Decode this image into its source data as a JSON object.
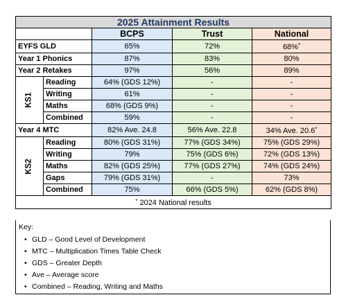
{
  "title": "2025 Attainment Results",
  "columns": [
    "BCPS",
    "Trust",
    "National"
  ],
  "rows": {
    "eyfs": {
      "label": "EYFS GLD",
      "bcps": "65%",
      "trust": "72%",
      "national": "68%"
    },
    "phonics": {
      "label": "Year 1 Phonics",
      "bcps": "87%",
      "trust": "83%",
      "national": "80%"
    },
    "retakes": {
      "label": "Year 2 Retakes",
      "bcps": "97%",
      "trust": "56%",
      "national": "89%"
    },
    "mtc": {
      "label": "Year 4 MTC",
      "bcps": "82% Ave. 24.8",
      "trust": "56% Ave. 22.8",
      "national": "34% Ave. 20.6"
    }
  },
  "ks1": {
    "label": "KS1",
    "rows": [
      {
        "label": "Reading",
        "bcps": "64% (GDS 12%)",
        "trust": "-",
        "national": "-"
      },
      {
        "label": "Writing",
        "bcps": "61%",
        "trust": "-",
        "national": "-"
      },
      {
        "label": "Maths",
        "bcps": "68% (GDS 9%)",
        "trust": "-",
        "national": "-"
      },
      {
        "label": "Combined",
        "bcps": "59%",
        "trust": "-",
        "national": "-"
      }
    ]
  },
  "ks2": {
    "label": "KS2",
    "rows": [
      {
        "label": "Reading",
        "bcps": "80% (GDS 31%)",
        "trust": "77% (GDS 34%)",
        "national": "75% (GDS 29%)"
      },
      {
        "label": "Writing",
        "bcps": "79%",
        "trust": "75% (GDS 6%)",
        "national": "72% (GDS 13%)"
      },
      {
        "label": "Maths",
        "bcps": "82% (GDS 25%)",
        "trust": "77% (GDS 27%)",
        "national": "74% (GDS 24%)"
      },
      {
        "label": "Gaps",
        "bcps": "79% (GDS 31%)",
        "trust": "-",
        "national": "73%"
      },
      {
        "label": "Combined",
        "bcps": "75%",
        "trust": "66% (GDS 5%)",
        "national": "62% (GDS 8%)"
      }
    ]
  },
  "asterisk": "*",
  "footnote": "2024 National results",
  "key": {
    "title": "Key:",
    "items": [
      "GLD – Good Level of Development",
      "MTC – Multiplication Times Table Check",
      "GDS – Greater Depth",
      "Ave – Average score",
      "Combined – Reading, Writing and Maths"
    ]
  }
}
